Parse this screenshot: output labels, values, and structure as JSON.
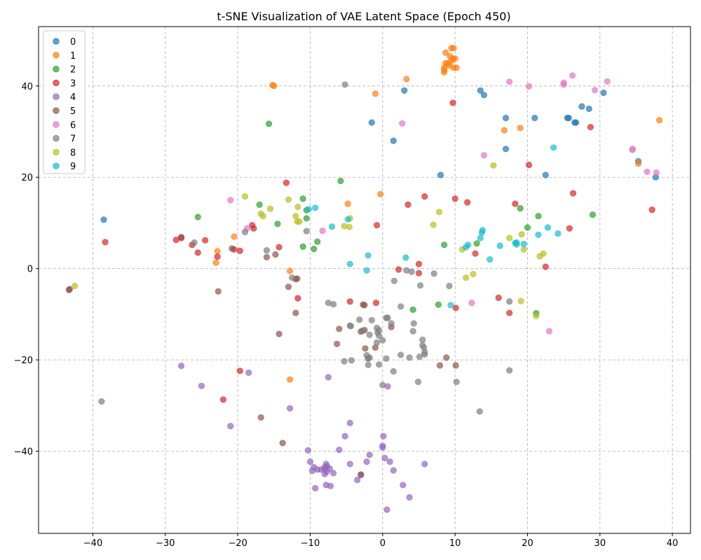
{
  "chart_data": {
    "type": "scatter",
    "title": "t-SNE Visualization of VAE Latent Space (Epoch 450)",
    "xlabel": "",
    "ylabel": "",
    "xlim": [
      -47.5,
      42.5
    ],
    "ylim": [
      -58,
      53
    ],
    "xticks": [
      -40,
      -30,
      -20,
      -10,
      0,
      10,
      20,
      30,
      40
    ],
    "yticks": [
      -40,
      -20,
      0,
      20,
      40
    ],
    "grid": true,
    "legend_position": "top-left",
    "marker_alpha": 0.7,
    "series": [
      {
        "name": "0",
        "color": "#1f77b4",
        "points": [
          [
            3,
            39
          ],
          [
            13.5,
            39
          ],
          [
            14,
            38
          ],
          [
            30.5,
            38.5
          ],
          [
            27.5,
            35.5
          ],
          [
            28.5,
            35
          ],
          [
            17,
            33
          ],
          [
            21,
            33
          ],
          [
            25.5,
            33
          ],
          [
            26.5,
            32
          ],
          [
            1.5,
            28
          ],
          [
            17,
            26.2
          ],
          [
            35.3,
            23.5
          ],
          [
            8,
            20.5
          ],
          [
            22.5,
            20.5
          ],
          [
            37.7,
            20
          ],
          [
            -38.5,
            10.7
          ],
          [
            -1.5,
            32
          ],
          [
            25.7,
            33
          ],
          [
            26.7,
            32
          ]
        ]
      },
      {
        "name": "1",
        "color": "#ff7f0e",
        "points": [
          [
            9.5,
            48.3
          ],
          [
            9.8,
            48.3
          ],
          [
            8.7,
            47.3
          ],
          [
            9.3,
            46.5
          ],
          [
            9.7,
            46
          ],
          [
            10,
            46
          ],
          [
            9,
            45
          ],
          [
            9.5,
            45.5
          ],
          [
            8.7,
            45
          ],
          [
            9.2,
            44.5
          ],
          [
            8.5,
            44
          ],
          [
            8.5,
            43.5
          ],
          [
            9.8,
            44
          ],
          [
            10.2,
            44
          ],
          [
            8.5,
            43
          ],
          [
            3.3,
            41.5
          ],
          [
            -15.2,
            40.2
          ],
          [
            -15,
            40
          ],
          [
            -1,
            38.3
          ],
          [
            38.2,
            32.5
          ],
          [
            19,
            30.8
          ],
          [
            16.8,
            30.3
          ],
          [
            35.3,
            23
          ],
          [
            -0.3,
            16.3
          ],
          [
            -4.8,
            14.2
          ],
          [
            -20.5,
            7
          ],
          [
            -22.8,
            3.8
          ],
          [
            -23,
            1.3
          ],
          [
            -12.8,
            -0.5
          ],
          [
            -12.8,
            -24.3
          ]
        ]
      },
      {
        "name": "2",
        "color": "#2ca02c",
        "points": [
          [
            -15.7,
            31.7
          ],
          [
            -5.8,
            19.2
          ],
          [
            -11,
            15.3
          ],
          [
            -17,
            14
          ],
          [
            19,
            13.2
          ],
          [
            -10.5,
            12.8
          ],
          [
            -25.5,
            11.3
          ],
          [
            21.5,
            11.5
          ],
          [
            29,
            11.8
          ],
          [
            -10.5,
            11
          ],
          [
            -14.5,
            9.8
          ],
          [
            20,
            9
          ],
          [
            -9,
            5.9
          ],
          [
            13,
            5.5
          ],
          [
            8.5,
            5.2
          ],
          [
            -11,
            4.8
          ],
          [
            -9.5,
            4.3
          ],
          [
            4.2,
            -9
          ],
          [
            7.7,
            -7.9
          ],
          [
            21.2,
            -9.8
          ]
        ]
      },
      {
        "name": "3",
        "color": "#d62728",
        "points": [
          [
            9.7,
            36.3
          ],
          [
            28.7,
            31
          ],
          [
            20.2,
            22.7
          ],
          [
            -13.3,
            18.8
          ],
          [
            26.3,
            16.5
          ],
          [
            5.8,
            15.8
          ],
          [
            10,
            15.3
          ],
          [
            11.7,
            14.5
          ],
          [
            18.3,
            14.2
          ],
          [
            3.5,
            14
          ],
          [
            -0.8,
            9.5
          ],
          [
            -18,
            9.5
          ],
          [
            -17.8,
            8.8
          ],
          [
            25.8,
            8.8
          ],
          [
            -27.8,
            6.7
          ],
          [
            -28.5,
            6.3
          ],
          [
            -38.3,
            5.8
          ],
          [
            -24.5,
            6.2
          ],
          [
            -26.3,
            5.2
          ],
          [
            -14.3,
            4.7
          ],
          [
            -20.5,
            4.2
          ],
          [
            -19.7,
            3.9
          ],
          [
            -25.5,
            3.5
          ],
          [
            -22.8,
            2.6
          ],
          [
            12.8,
            3.3
          ],
          [
            22.5,
            0.4
          ],
          [
            5,
            1
          ],
          [
            2.2,
            -0.2
          ],
          [
            5,
            -1
          ],
          [
            37.2,
            12.9
          ],
          [
            -11.7,
            -6.5
          ],
          [
            -4.5,
            -7.2
          ],
          [
            -0.9,
            -7.5
          ],
          [
            10.1,
            -8.6
          ],
          [
            17.5,
            -9.7
          ],
          [
            16,
            -6.4
          ],
          [
            -19.7,
            -22.4
          ],
          [
            -22,
            -28.7
          ]
        ]
      },
      {
        "name": "4",
        "color": "#9467bd",
        "points": [
          [
            -27.8,
            -21.3
          ],
          [
            -18.5,
            -22.8
          ],
          [
            -7.5,
            -23.8
          ],
          [
            -25,
            -25.7
          ],
          [
            0.7,
            -25.8
          ],
          [
            -12.8,
            -30.6
          ],
          [
            -21,
            -34.5
          ],
          [
            -4.5,
            -33.8
          ],
          [
            -5.2,
            -36.7
          ],
          [
            0.1,
            -36.7
          ],
          [
            -6,
            -39.7
          ],
          [
            0,
            -39.2
          ],
          [
            0,
            -38.8
          ],
          [
            -10.3,
            -39.8
          ],
          [
            -1.8,
            -40.8
          ],
          [
            0.3,
            -41.5
          ],
          [
            -10,
            -42.3
          ],
          [
            1,
            -42.3
          ],
          [
            -2.2,
            -42.3
          ],
          [
            -4.5,
            -42.8
          ],
          [
            5.8,
            -42.8
          ],
          [
            -7.8,
            -42.8
          ],
          [
            -7.7,
            -43.3
          ],
          [
            -8,
            -43.5
          ],
          [
            -9.5,
            -43.5
          ],
          [
            -7.3,
            -43.8
          ],
          [
            -8,
            -44
          ],
          [
            -8.5,
            -44
          ],
          [
            -9,
            -44
          ],
          [
            -9.7,
            -44.3
          ],
          [
            -7.7,
            -44.5
          ],
          [
            -6.8,
            -44.8
          ],
          [
            -8,
            -45
          ],
          [
            1.5,
            -44.2
          ],
          [
            -3,
            -45.2
          ],
          [
            -3.5,
            -46.3
          ],
          [
            -7.8,
            -47.4
          ],
          [
            -7.2,
            -47.6
          ],
          [
            -9.3,
            -48.1
          ],
          [
            2.8,
            -47.4
          ],
          [
            3.7,
            -50.1
          ],
          [
            0.6,
            -52.8
          ]
        ]
      },
      {
        "name": "5",
        "color": "#8c564b",
        "points": [
          [
            -43.2,
            -4.5
          ],
          [
            -43.3,
            -4.7
          ],
          [
            -27.8,
            6.9
          ],
          [
            -20.8,
            4.4
          ],
          [
            -16,
            2.5
          ],
          [
            -14.8,
            3.1
          ],
          [
            -13,
            -4
          ],
          [
            -12,
            -2.3
          ],
          [
            -11.8,
            -2.2
          ],
          [
            -12,
            -9.7
          ],
          [
            -22.7,
            -5
          ],
          [
            -14.3,
            -14.3
          ],
          [
            -2.7,
            -7.9
          ],
          [
            -2.5,
            -8
          ],
          [
            -6,
            -13.2
          ],
          [
            -3,
            -13.8
          ],
          [
            -2.5,
            -13.5
          ],
          [
            -6.3,
            -16.5
          ],
          [
            1.2,
            -12.8
          ],
          [
            -2.4,
            -17.5
          ],
          [
            -1,
            -17.3
          ],
          [
            -2,
            -19.7
          ],
          [
            7.9,
            -21.2
          ],
          [
            8.8,
            -19.5
          ],
          [
            10.1,
            -21.2
          ],
          [
            -16.8,
            -32.6
          ],
          [
            -13.8,
            -38.2
          ],
          [
            -3,
            -45.1
          ]
        ]
      },
      {
        "name": "6",
        "color": "#e377c2",
        "points": [
          [
            26.2,
            42.3
          ],
          [
            31,
            41
          ],
          [
            17.5,
            40.9
          ],
          [
            25,
            40.7
          ],
          [
            25,
            40.3
          ],
          [
            29.3,
            39.1
          ],
          [
            20.2,
            39.9
          ],
          [
            2.7,
            31.8
          ],
          [
            34.5,
            26.2
          ],
          [
            34.5,
            26
          ],
          [
            14,
            24.8
          ],
          [
            36.5,
            21.2
          ],
          [
            37.8,
            21
          ],
          [
            -21,
            15
          ],
          [
            -8.3,
            8.3
          ],
          [
            -18.7,
            8.8
          ],
          [
            12.3,
            -7.5
          ],
          [
            23,
            -13.7
          ]
        ]
      },
      {
        "name": "7",
        "color": "#7f7f7f",
        "points": [
          [
            -5.2,
            40.3
          ],
          [
            -19,
            8
          ],
          [
            -10.5,
            8.2
          ],
          [
            -26,
            5.7
          ],
          [
            -16,
            4
          ],
          [
            -12.5,
            -2
          ],
          [
            7.1,
            -1.1
          ],
          [
            4,
            -0.7
          ],
          [
            3.3,
            -0.4
          ],
          [
            1.6,
            -2.7
          ],
          [
            5.2,
            -3.7
          ],
          [
            9.2,
            -3.8
          ],
          [
            -7.5,
            -7.5
          ],
          [
            -6.8,
            -7.8
          ],
          [
            2.5,
            -8.3
          ],
          [
            0.5,
            -10.8
          ],
          [
            0.7,
            -10.8
          ],
          [
            -3.2,
            -11.2
          ],
          [
            -1.5,
            -11.3
          ],
          [
            4.3,
            -12
          ],
          [
            -4.5,
            -12.5
          ],
          [
            -4.4,
            -12.6
          ],
          [
            -0.8,
            -13
          ],
          [
            1.2,
            -12
          ],
          [
            -0.5,
            -13.5
          ],
          [
            -0.7,
            -14
          ],
          [
            4.2,
            -13.7
          ],
          [
            -1.8,
            -14.5
          ],
          [
            -0.5,
            -14.7
          ],
          [
            -2.8,
            -13.6
          ],
          [
            0,
            -15.7
          ],
          [
            -0.8,
            -16.2
          ],
          [
            5.5,
            -15.6
          ],
          [
            5.5,
            -16.8
          ],
          [
            5.7,
            -17.3
          ],
          [
            5.8,
            -18.3
          ],
          [
            -5.3,
            -20.3
          ],
          [
            -4.3,
            -20.1
          ],
          [
            -0.5,
            -21
          ],
          [
            0.5,
            -19.7
          ],
          [
            2.5,
            -18.9
          ],
          [
            3.7,
            -19.5
          ],
          [
            5.8,
            -18.8
          ],
          [
            5.1,
            -19.3
          ],
          [
            -2,
            -21.1
          ],
          [
            1.5,
            -22.5
          ],
          [
            -2.2,
            -19
          ],
          [
            -1.8,
            -19.5
          ],
          [
            10.2,
            -24.8
          ],
          [
            4.9,
            -24.8
          ],
          [
            17.5,
            -7.2
          ],
          [
            17.5,
            -22.3
          ],
          [
            13.4,
            -31.3
          ],
          [
            -38.8,
            -29.1
          ],
          [
            0,
            -25.5
          ]
        ]
      },
      {
        "name": "8",
        "color": "#bcbd22",
        "points": [
          [
            15.3,
            22.6
          ],
          [
            -19,
            15.8
          ],
          [
            -13,
            15.1
          ],
          [
            -11.7,
            13.5
          ],
          [
            -15.5,
            13.1
          ],
          [
            -16.8,
            12
          ],
          [
            -16.5,
            11.5
          ],
          [
            -12,
            11.5
          ],
          [
            -11.8,
            10.3
          ],
          [
            -11.5,
            10.3
          ],
          [
            7.8,
            12.4
          ],
          [
            -4.5,
            11
          ],
          [
            7,
            9.6
          ],
          [
            -5.3,
            9.3
          ],
          [
            -4.6,
            9.1
          ],
          [
            19.2,
            7.5
          ],
          [
            17.5,
            6.7
          ],
          [
            11,
            4.2
          ],
          [
            19.5,
            4.2
          ],
          [
            22.2,
            3.3
          ],
          [
            21.7,
            2.7
          ],
          [
            12.5,
            -1.2
          ],
          [
            11.5,
            -2
          ],
          [
            19.1,
            -7.1
          ],
          [
            21.2,
            -10.4
          ],
          [
            -42.5,
            -3.8
          ]
        ]
      },
      {
        "name": "9",
        "color": "#17becf",
        "points": [
          [
            23.6,
            26.5
          ],
          [
            -9.3,
            13.3
          ],
          [
            -10.2,
            13
          ],
          [
            -4.8,
            10.8
          ],
          [
            -7,
            9.2
          ],
          [
            22.8,
            9
          ],
          [
            13.8,
            8.4
          ],
          [
            13.7,
            7.9
          ],
          [
            13.5,
            6.7
          ],
          [
            24.2,
            7.7
          ],
          [
            21.5,
            7.4
          ],
          [
            18.3,
            5.6
          ],
          [
            18.5,
            5.7
          ],
          [
            19.5,
            5.4
          ],
          [
            18.5,
            5.3
          ],
          [
            16.2,
            5
          ],
          [
            11.8,
            5.2
          ],
          [
            11.5,
            4.7
          ],
          [
            -2,
            2.9
          ],
          [
            3.2,
            2.4
          ],
          [
            14.8,
            2
          ],
          [
            -4.5,
            1
          ],
          [
            -2.2,
            -0.4
          ],
          [
            9.4,
            -8
          ]
        ]
      }
    ]
  }
}
